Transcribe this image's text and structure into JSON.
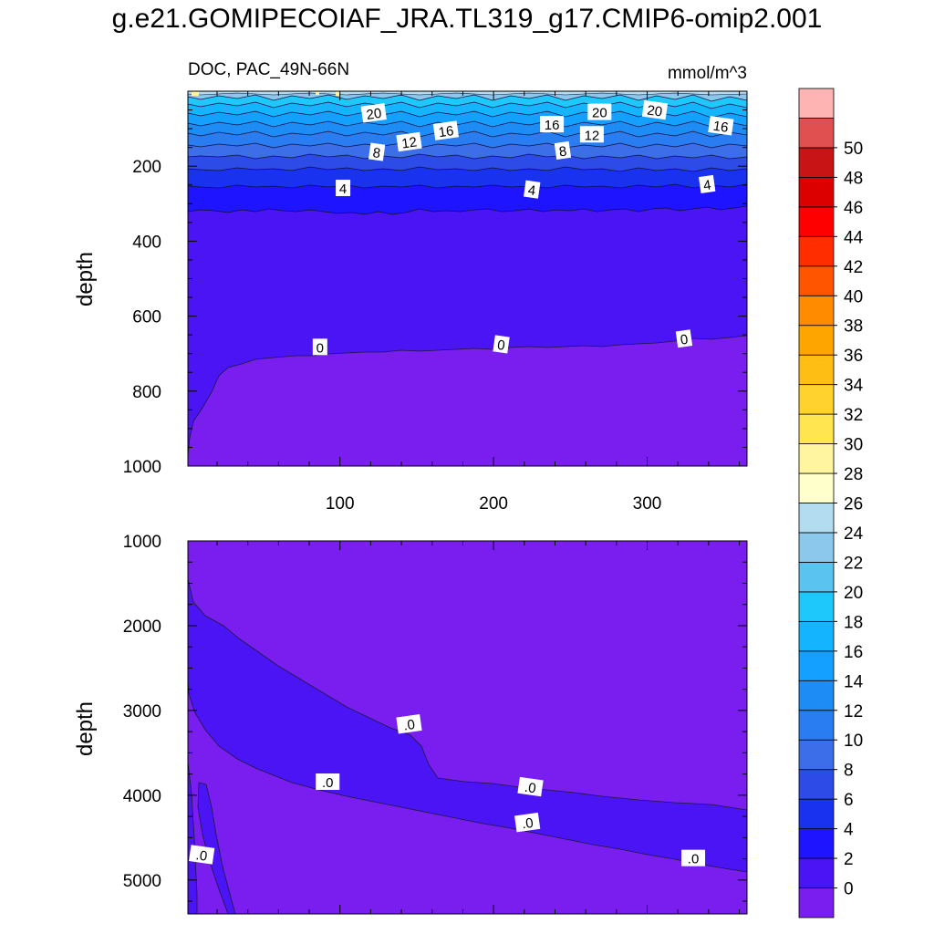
{
  "figure": {
    "title": "g.e21.GOMIPECOIAF_JRA.TL319_g17.CMIP6-omip2.001"
  },
  "chart_data": [
    {
      "type": "contour",
      "panel": "upper",
      "left_label": "DOC, PAC_49N-66N",
      "right_label": "mmol/m^3",
      "ylabel": "depth",
      "xlabel": "",
      "xlim": [
        1,
        365
      ],
      "ylim": [
        1000,
        0
      ],
      "y_reversed": true,
      "xticks": [
        100,
        200,
        300
      ],
      "xtick_labels": [
        "100",
        "200",
        "300"
      ],
      "yticks": [
        200,
        400,
        600,
        800,
        1000
      ],
      "ytick_labels": [
        "200",
        "400",
        "600",
        "800",
        "1000"
      ],
      "contour_labels": [
        {
          "text": "20",
          "x": 122,
          "y": 58
        },
        {
          "text": "20",
          "x": 269,
          "y": 55
        },
        {
          "text": "20",
          "x": 305,
          "y": 50
        },
        {
          "text": "16",
          "x": 169,
          "y": 105
        },
        {
          "text": "16",
          "x": 238,
          "y": 88
        },
        {
          "text": "16",
          "x": 348,
          "y": 92
        },
        {
          "text": "12",
          "x": 145,
          "y": 135
        },
        {
          "text": "12",
          "x": 264,
          "y": 115
        },
        {
          "text": "8",
          "x": 124,
          "y": 162
        },
        {
          "text": "8",
          "x": 245,
          "y": 158
        },
        {
          "text": "4",
          "x": 102,
          "y": 258
        },
        {
          "text": "4",
          "x": 225,
          "y": 262
        },
        {
          "text": "4",
          "x": 339,
          "y": 248
        },
        {
          "text": "0",
          "x": 87,
          "y": 682
        },
        {
          "text": "0",
          "x": 205,
          "y": 675
        },
        {
          "text": "0",
          "x": 324,
          "y": 660
        }
      ]
    },
    {
      "type": "contour",
      "panel": "lower",
      "ylabel": "depth",
      "xlabel": "",
      "xlim": [
        1,
        365
      ],
      "ylim": [
        5400,
        1000
      ],
      "y_reversed": true,
      "yticks": [
        1000,
        2000,
        3000,
        4000,
        5000
      ],
      "ytick_labels": [
        "1000",
        "2000",
        "3000",
        "4000",
        "5000"
      ],
      "contour_labels": [
        {
          "text": ".0",
          "x": 145,
          "y": 3160
        },
        {
          "text": ".0",
          "x": 92,
          "y": 3840
        },
        {
          "text": ".0",
          "x": 224,
          "y": 3900
        },
        {
          "text": ".0",
          "x": 222,
          "y": 4320
        },
        {
          "text": ".0",
          "x": 330,
          "y": 4740
        },
        {
          "text": ".0",
          "x": 10,
          "y": 4700
        }
      ]
    }
  ],
  "colorbar": {
    "labels": [
      "0",
      "2",
      "4",
      "6",
      "8",
      "10",
      "12",
      "14",
      "16",
      "18",
      "20",
      "22",
      "24",
      "26",
      "28",
      "30",
      "32",
      "34",
      "36",
      "38",
      "40",
      "42",
      "44",
      "46",
      "48",
      "50"
    ],
    "colors": [
      "#7a1ef0",
      "#4b14f5",
      "#1e14ff",
      "#1932f0",
      "#2d4be6",
      "#3b6ee8",
      "#2a7df0",
      "#1e8cf5",
      "#14a0ff",
      "#14b4ff",
      "#1ec8fa",
      "#5ac3f0",
      "#8cc8ec",
      "#b4dcf0",
      "#ffffcc",
      "#fff5a0",
      "#ffe650",
      "#ffd22d",
      "#ffbe14",
      "#ffa500",
      "#ff8c00",
      "#ff5500",
      "#ff2d00",
      "#ff0000",
      "#dc0000",
      "#c81414",
      "#e05050",
      "#ffb4b4"
    ]
  }
}
